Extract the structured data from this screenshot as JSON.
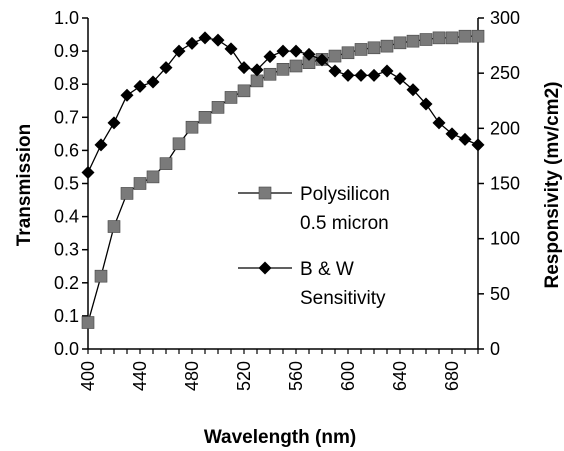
{
  "chart_data": {
    "type": "line",
    "title": "",
    "xlabel": "Wavelength (nm)",
    "ylabel": "Transmission",
    "y2label": "Responsivity (mv/cm2)",
    "xlim": [
      400,
      700
    ],
    "ylim": [
      0,
      1
    ],
    "y2lim": [
      0,
      300
    ],
    "x_ticks": [
      "400",
      "440",
      "480",
      "520",
      "560",
      "600",
      "640",
      "680"
    ],
    "y_ticks": [
      "0.0",
      "0.1",
      "0.2",
      "0.3",
      "0.4",
      "0.5",
      "0.6",
      "0.7",
      "0.8",
      "0.9",
      "1.0"
    ],
    "y2_ticks": [
      "0",
      "50",
      "100",
      "150",
      "200",
      "250",
      "300"
    ],
    "grid": false,
    "legend_position": "center-right",
    "x": [
      400,
      410,
      420,
      430,
      440,
      450,
      460,
      470,
      480,
      490,
      500,
      510,
      520,
      530,
      540,
      550,
      560,
      570,
      580,
      590,
      600,
      610,
      620,
      630,
      640,
      650,
      660,
      670,
      680,
      690,
      700
    ],
    "series": [
      {
        "name": "Polysilicon 0.5 micron",
        "axis": "left",
        "marker": "square",
        "color": "#7a7a7a",
        "values": [
          0.08,
          0.22,
          0.37,
          0.47,
          0.5,
          0.52,
          0.56,
          0.62,
          0.67,
          0.7,
          0.73,
          0.76,
          0.78,
          0.81,
          0.83,
          0.845,
          0.855,
          0.865,
          0.875,
          0.885,
          0.895,
          0.905,
          0.91,
          0.915,
          0.925,
          0.93,
          0.935,
          0.94,
          0.94,
          0.945,
          0.945
        ]
      },
      {
        "name": "B & W Sensitivity",
        "axis": "right",
        "marker": "diamond",
        "color": "#000000",
        "values": [
          160,
          185,
          205,
          230,
          238,
          242,
          255,
          270,
          277,
          282,
          280,
          272,
          255,
          253,
          265,
          270,
          270,
          267,
          262,
          252,
          248,
          248,
          248,
          252,
          245,
          235,
          222,
          205,
          195,
          190,
          185
        ]
      }
    ]
  }
}
